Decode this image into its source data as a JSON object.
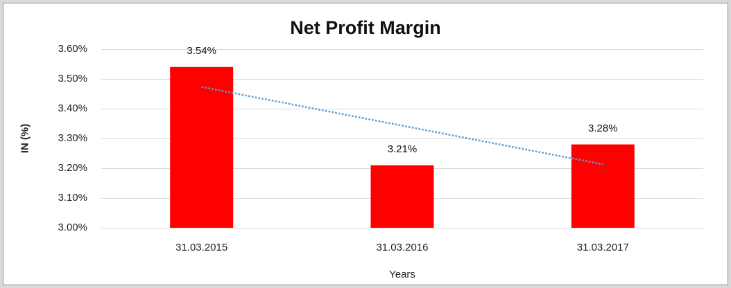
{
  "chart_data": {
    "type": "bar",
    "title": "Net Profit Margin",
    "xlabel": "Years",
    "ylabel": "IN (%)",
    "categories": [
      "31.03.2015",
      "31.03.2016",
      "31.03.2017"
    ],
    "values": [
      3.54,
      3.21,
      3.28
    ],
    "value_labels": [
      "3.54%",
      "3.21%",
      "3.28%"
    ],
    "ylim": [
      3.0,
      3.6
    ],
    "yticks": {
      "values": [
        3.6,
        3.5,
        3.4,
        3.3,
        3.2,
        3.1,
        3.0
      ],
      "labels": [
        "3.60%",
        "3.50%",
        "3.40%",
        "3.30%",
        "3.20%",
        "3.10%",
        "3.00%"
      ]
    },
    "grid": "horizontal",
    "legend": "none",
    "bar_color": "#ff0000",
    "gridline_color": "#d9d9d9",
    "axis_text_color": "#1f1f1f",
    "trendline": {
      "type": "linear",
      "style": "dotted",
      "color": "#5b9bd5",
      "start_value": 3.473,
      "end_value": 3.213
    }
  }
}
